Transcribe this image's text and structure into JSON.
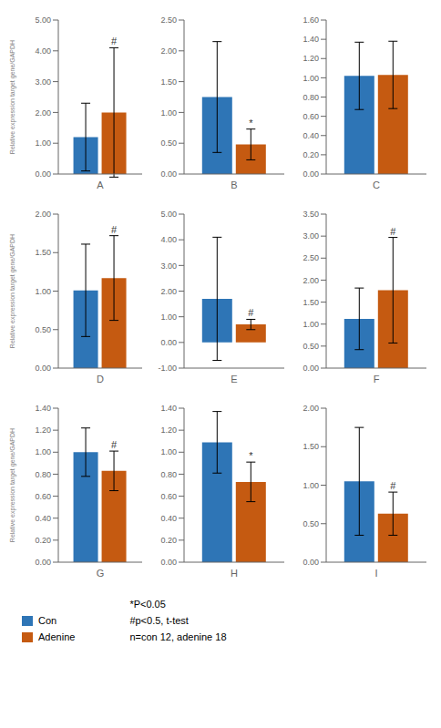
{
  "chart_data": [
    {
      "type": "bar",
      "categories": [
        "A"
      ],
      "series": [
        {
          "name": "Con",
          "color": "#2E75B6",
          "values": [
            1.2
          ],
          "errors": [
            1.1
          ]
        },
        {
          "name": "Adenine",
          "color": "#C55A11",
          "values": [
            2.0
          ],
          "errors": [
            2.1
          ]
        }
      ],
      "ylabel": "Relative expression target gene/GAPDH",
      "ylim": [
        0,
        5.0
      ],
      "yticks": [
        {
          "value": 0,
          "label": "0.00"
        },
        {
          "value": 1,
          "label": "1.00"
        },
        {
          "value": 2,
          "label": "2.00"
        },
        {
          "value": 3,
          "label": "3.00"
        },
        {
          "value": 4,
          "label": "4.00"
        },
        {
          "value": 5,
          "label": "5.00"
        }
      ],
      "grid": false,
      "annotations": [
        {
          "text": "#",
          "series": "Adenine",
          "category": "A"
        }
      ]
    },
    {
      "type": "bar",
      "categories": [
        "B"
      ],
      "series": [
        {
          "name": "Con",
          "color": "#2E75B6",
          "values": [
            1.25
          ],
          "errors": [
            0.9
          ]
        },
        {
          "name": "Adenine",
          "color": "#C55A11",
          "values": [
            0.48
          ],
          "errors": [
            0.25
          ]
        }
      ],
      "ylim": [
        0,
        2.5
      ],
      "yticks": [
        {
          "value": 0,
          "label": "0.00"
        },
        {
          "value": 0.5,
          "label": "0.50"
        },
        {
          "value": 1,
          "label": "1.00"
        },
        {
          "value": 1.5,
          "label": "1.50"
        },
        {
          "value": 2,
          "label": "2.00"
        },
        {
          "value": 2.5,
          "label": "2.50"
        }
      ],
      "grid": false,
      "annotations": [
        {
          "text": "*",
          "series": "Adenine",
          "category": "B"
        }
      ]
    },
    {
      "type": "bar",
      "categories": [
        "C"
      ],
      "series": [
        {
          "name": "Con",
          "color": "#2E75B6",
          "values": [
            1.02
          ],
          "errors": [
            0.35
          ]
        },
        {
          "name": "Adenine",
          "color": "#C55A11",
          "values": [
            1.03
          ],
          "errors": [
            0.35
          ]
        }
      ],
      "ylim": [
        0,
        1.6
      ],
      "yticks": [
        {
          "value": 0,
          "label": "0.00"
        },
        {
          "value": 0.2,
          "label": "0.20"
        },
        {
          "value": 0.4,
          "label": "0.40"
        },
        {
          "value": 0.6,
          "label": "0.60"
        },
        {
          "value": 0.8,
          "label": "0.80"
        },
        {
          "value": 1.0,
          "label": "1.00"
        },
        {
          "value": 1.2,
          "label": "1.20"
        },
        {
          "value": 1.4,
          "label": "1.40"
        },
        {
          "value": 1.6,
          "label": "1.60"
        }
      ],
      "grid": false,
      "annotations": []
    },
    {
      "type": "bar",
      "categories": [
        "D"
      ],
      "series": [
        {
          "name": "Con",
          "color": "#2E75B6",
          "values": [
            1.01
          ],
          "errors": [
            0.6
          ]
        },
        {
          "name": "Adenine",
          "color": "#C55A11",
          "values": [
            1.17
          ],
          "errors": [
            0.55
          ]
        }
      ],
      "ylabel": "Relative expression target gene/GAPDH",
      "ylim": [
        0,
        2.0
      ],
      "yticks": [
        {
          "value": 0,
          "label": "0.00"
        },
        {
          "value": 0.5,
          "label": "0.50"
        },
        {
          "value": 1,
          "label": "1.00"
        },
        {
          "value": 1.5,
          "label": "1.50"
        },
        {
          "value": 2,
          "label": "2.00"
        }
      ],
      "grid": false,
      "annotations": [
        {
          "text": "#",
          "series": "Adenine",
          "category": "D"
        }
      ]
    },
    {
      "type": "bar",
      "categories": [
        "E"
      ],
      "series": [
        {
          "name": "Con",
          "color": "#2E75B6",
          "values": [
            1.7
          ],
          "errors": [
            2.4
          ]
        },
        {
          "name": "Adenine",
          "color": "#C55A11",
          "values": [
            0.7
          ],
          "errors": [
            0.2
          ]
        }
      ],
      "ylim": [
        -1,
        5.0
      ],
      "yticks": [
        {
          "value": -1,
          "label": "-1.00"
        },
        {
          "value": 0,
          "label": "0.00"
        },
        {
          "value": 1,
          "label": "1.00"
        },
        {
          "value": 2,
          "label": "2.00"
        },
        {
          "value": 3,
          "label": "3.00"
        },
        {
          "value": 4,
          "label": "4.00"
        },
        {
          "value": 5,
          "label": "5.00"
        }
      ],
      "grid": false,
      "annotations": [
        {
          "text": "#",
          "series": "Adenine",
          "category": "E"
        }
      ]
    },
    {
      "type": "bar",
      "categories": [
        "F"
      ],
      "series": [
        {
          "name": "Con",
          "color": "#2E75B6",
          "values": [
            1.12
          ],
          "errors": [
            0.7
          ]
        },
        {
          "name": "Adenine",
          "color": "#C55A11",
          "values": [
            1.77
          ],
          "errors": [
            1.2
          ]
        }
      ],
      "ylim": [
        0,
        3.5
      ],
      "yticks": [
        {
          "value": 0,
          "label": "0.00"
        },
        {
          "value": 0.5,
          "label": "0.50"
        },
        {
          "value": 1,
          "label": "1.00"
        },
        {
          "value": 1.5,
          "label": "1.50"
        },
        {
          "value": 2,
          "label": "2.00"
        },
        {
          "value": 2.5,
          "label": "2.50"
        },
        {
          "value": 3,
          "label": "3.00"
        },
        {
          "value": 3.5,
          "label": "3.50"
        }
      ],
      "grid": false,
      "annotations": [
        {
          "text": "#",
          "series": "Adenine",
          "category": "F"
        }
      ]
    },
    {
      "type": "bar",
      "categories": [
        "G"
      ],
      "series": [
        {
          "name": "Con",
          "color": "#2E75B6",
          "values": [
            1.0
          ],
          "errors": [
            0.22
          ]
        },
        {
          "name": "Adenine",
          "color": "#C55A11",
          "values": [
            0.83
          ],
          "errors": [
            0.18
          ]
        }
      ],
      "ylabel": "Relative expression target gene/GAPDH",
      "ylim": [
        0,
        1.4
      ],
      "yticks": [
        {
          "value": 0,
          "label": "0.00"
        },
        {
          "value": 0.2,
          "label": "0.20"
        },
        {
          "value": 0.4,
          "label": "0.40"
        },
        {
          "value": 0.6,
          "label": "0.60"
        },
        {
          "value": 0.8,
          "label": "0.80"
        },
        {
          "value": 1.0,
          "label": "1.00"
        },
        {
          "value": 1.2,
          "label": "1.20"
        },
        {
          "value": 1.4,
          "label": "1.40"
        }
      ],
      "grid": false,
      "annotations": [
        {
          "text": "#",
          "series": "Adenine",
          "category": "G"
        }
      ]
    },
    {
      "type": "bar",
      "categories": [
        "H"
      ],
      "series": [
        {
          "name": "Con",
          "color": "#2E75B6",
          "values": [
            1.09
          ],
          "errors": [
            0.28
          ]
        },
        {
          "name": "Adenine",
          "color": "#C55A11",
          "values": [
            0.73
          ],
          "errors": [
            0.18
          ]
        }
      ],
      "ylim": [
        0,
        1.4
      ],
      "yticks": [
        {
          "value": 0,
          "label": "0.00"
        },
        {
          "value": 0.2,
          "label": "0.20"
        },
        {
          "value": 0.4,
          "label": "0.40"
        },
        {
          "value": 0.6,
          "label": "0.60"
        },
        {
          "value": 0.8,
          "label": "0.80"
        },
        {
          "value": 1.0,
          "label": "1.00"
        },
        {
          "value": 1.2,
          "label": "1.20"
        },
        {
          "value": 1.4,
          "label": "1.40"
        }
      ],
      "grid": false,
      "annotations": [
        {
          "text": "*",
          "series": "Adenine",
          "category": "H"
        }
      ]
    },
    {
      "type": "bar",
      "categories": [
        "I"
      ],
      "series": [
        {
          "name": "Con",
          "color": "#2E75B6",
          "values": [
            1.05
          ],
          "errors": [
            0.7
          ]
        },
        {
          "name": "Adenine",
          "color": "#C55A11",
          "values": [
            0.63
          ],
          "errors": [
            0.28
          ]
        }
      ],
      "ylim": [
        0,
        2.0
      ],
      "yticks": [
        {
          "value": 0,
          "label": "0.00"
        },
        {
          "value": 0.5,
          "label": "0.50"
        },
        {
          "value": 1,
          "label": "1.00"
        },
        {
          "value": 1.5,
          "label": "1.50"
        },
        {
          "value": 2,
          "label": "2.00"
        }
      ],
      "grid": false,
      "annotations": [
        {
          "text": "#",
          "series": "Adenine",
          "category": "I"
        }
      ]
    }
  ],
  "legend": "lower left",
  "annotations": [
    "*P<0.05",
    "#p<0.5, t-test",
    "n=con 12, adenine 18"
  ]
}
